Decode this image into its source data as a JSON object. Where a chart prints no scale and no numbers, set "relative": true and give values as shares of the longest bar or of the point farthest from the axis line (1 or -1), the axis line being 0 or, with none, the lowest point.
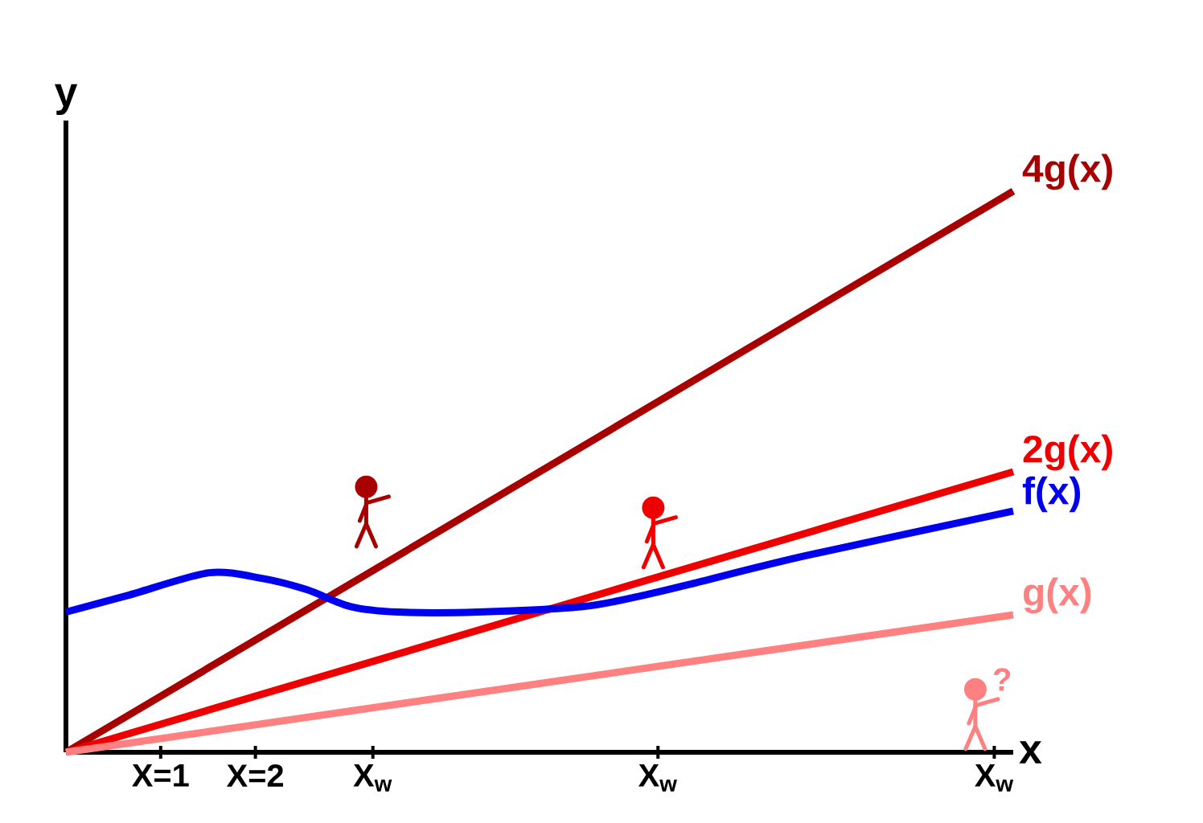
{
  "chart_data": {
    "type": "line",
    "relative": true,
    "xlabel": "x",
    "ylabel": "y",
    "xlim": [
      0,
      10
    ],
    "xticks": [
      {
        "value": 1,
        "label": "X=1"
      },
      {
        "value": 2,
        "label": "X=2"
      },
      {
        "value": 3.24,
        "label": "X$_{w}$"
      },
      {
        "value": 6.25,
        "label": "X$_{w}$"
      },
      {
        "value": 9.8,
        "label": "X$_{w}$"
      }
    ],
    "tick_labels": "x",
    "grid": false,
    "legend": false,
    "annotations": [
      "?"
    ],
    "series": [
      {
        "name": "4g(x)",
        "color": "#a80000",
        "x": [
          0,
          10
        ],
        "values": [
          0,
          1
        ]
      },
      {
        "name": "2g(x)",
        "color": "#ee0000",
        "x": [
          0,
          10
        ],
        "values": [
          0,
          0.5
        ]
      },
      {
        "name": "f(x)",
        "color": "#0000ee",
        "x": [
          0,
          0.66,
          1.51,
          2.07,
          2.54,
          3.0,
          3.5,
          4.35,
          5.47,
          6.1,
          6.6,
          7.8,
          10
        ],
        "values": [
          0.25,
          0.28,
          0.32,
          0.31,
          0.29,
          0.26,
          0.25,
          0.25,
          0.26,
          0.28,
          0.3,
          0.35,
          0.43
        ]
      },
      {
        "name": "g(x)",
        "color": "#ff8080",
        "x": [
          0,
          10
        ],
        "values": [
          0,
          0.245
        ]
      }
    ]
  }
}
